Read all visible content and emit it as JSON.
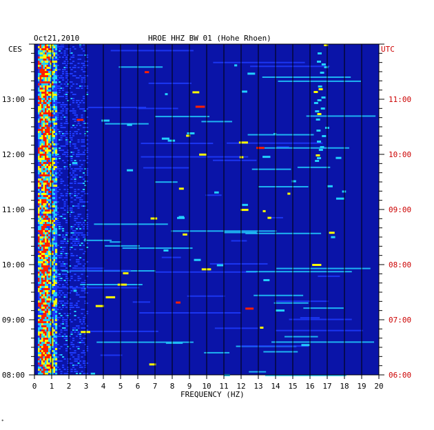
{
  "header": {
    "date": "Oct21,2010",
    "station": "HROE HHZ BW 01 (Hohe Rhoen)",
    "left_tz": "CES",
    "right_tz": "UTC"
  },
  "footnote": "*",
  "chart_data": {
    "type": "heatmap",
    "title": "HROE HHZ BW 01 (Hohe Rhoen)",
    "date": "Oct21,2010",
    "xlabel": "FREQUENCY (HZ)",
    "xlim": [
      0,
      20
    ],
    "x_ticks": [
      "0",
      "1",
      "2",
      "3",
      "4",
      "5",
      "6",
      "7",
      "8",
      "9",
      "10",
      "11",
      "12",
      "13",
      "14",
      "15",
      "16",
      "17",
      "18",
      "19",
      "20"
    ],
    "y_left_label": "CES",
    "y_right_label": "UTC",
    "y_left_ticks": [
      "13:00",
      "12:00",
      "11:00",
      "10:00",
      "09:00",
      "08:00"
    ],
    "y_right_ticks": [
      "11:00",
      "10:00",
      "09:00",
      "08:00",
      "07:00",
      "06:00"
    ],
    "time_range_ces": [
      "08:00",
      "14:00"
    ],
    "colors": {
      "background": "#0a14a8",
      "low": "#1e3cff",
      "mid": "#22d0ff",
      "high": "#ffff00",
      "peak": "#ff2000",
      "utc_text": "#cc0000"
    }
  }
}
